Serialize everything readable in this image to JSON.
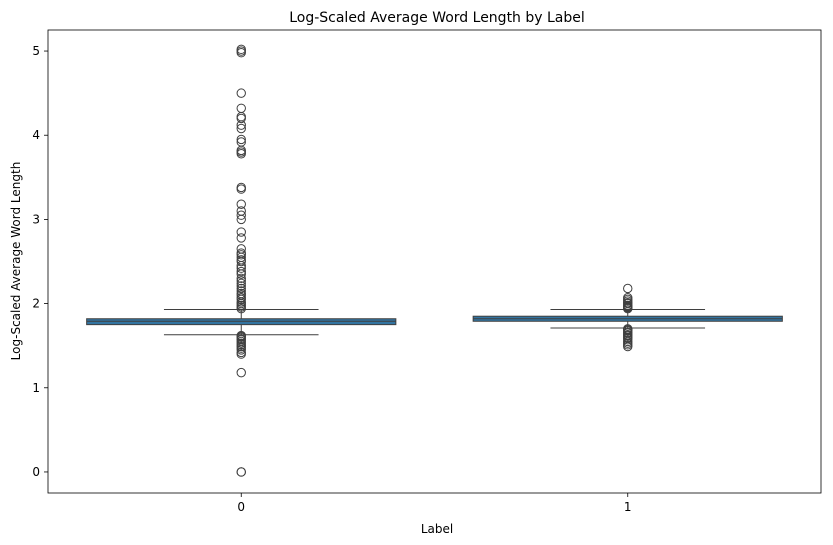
{
  "chart_data": {
    "type": "box",
    "title": "Log-Scaled Average Word Length by Label",
    "xlabel": "Label",
    "ylabel": "Log-Scaled Average Word Length",
    "categories": [
      "0",
      "1"
    ],
    "ylim": [
      -0.25,
      5.25
    ],
    "yticks": [
      0,
      1,
      2,
      3,
      4,
      5
    ],
    "box_color": "#3274a1",
    "edge_color": "#3f3f3f",
    "boxes": [
      {
        "label": "0",
        "whisker_low": 1.63,
        "q1": 1.75,
        "median": 1.79,
        "q3": 1.82,
        "whisker_high": 1.93,
        "outliers": [
          5.02,
          5.0,
          4.98,
          4.5,
          4.32,
          4.22,
          4.2,
          4.12,
          4.08,
          3.95,
          3.92,
          3.82,
          3.8,
          3.78,
          3.38,
          3.36,
          3.18,
          3.1,
          3.05,
          3.0,
          2.85,
          2.78,
          2.65,
          2.6,
          2.58,
          2.55,
          2.52,
          2.5,
          2.45,
          2.42,
          2.38,
          2.35,
          2.3,
          2.27,
          2.24,
          2.21,
          2.18,
          2.15,
          2.12,
          2.1,
          2.07,
          2.05,
          2.02,
          2.0,
          1.98,
          1.96,
          1.94,
          1.62,
          1.61,
          1.6,
          1.58,
          1.57,
          1.55,
          1.53,
          1.51,
          1.49,
          1.47,
          1.45,
          1.42,
          1.4,
          1.18,
          0.0,
          0.0
        ]
      },
      {
        "label": "1",
        "whisker_low": 1.71,
        "q1": 1.79,
        "median": 1.82,
        "q3": 1.85,
        "whisker_high": 1.93,
        "outliers": [
          2.18,
          2.07,
          2.05,
          2.03,
          2.01,
          2.0,
          1.98,
          1.97,
          1.96,
          1.95,
          1.94,
          1.7,
          1.69,
          1.68,
          1.66,
          1.65,
          1.63,
          1.62,
          1.6,
          1.59,
          1.57,
          1.55,
          1.53,
          1.51,
          1.49
        ]
      }
    ]
  }
}
